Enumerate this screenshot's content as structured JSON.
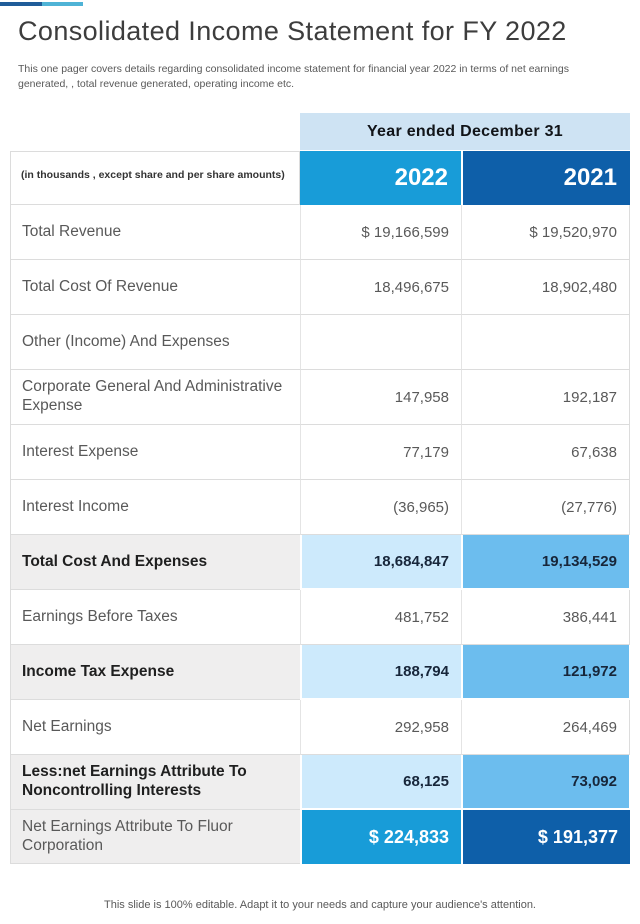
{
  "colors": {
    "accent_bright_blue": "#189CD8",
    "accent_dark_blue": "#0E5FA9",
    "band_light_blue": "#CEE3F3",
    "highlight_light_blue": "#CDEAFC",
    "highlight_medium_blue": "#6CBDEE",
    "highlight_gray": "#EFEEEE",
    "top_bar_dark": "#1F5C99",
    "top_bar_light": "#4FB3D6"
  },
  "header": {
    "title": "Consolidated Income Statement for FY 2022",
    "subtitle": "This one pager covers details regarding consolidated income statement for financial year 2022 in terms of net earnings generated, , total revenue generated, operating income etc."
  },
  "table": {
    "span_header": "Year ended December 31",
    "note": "(in thousands , except share and per share amounts)",
    "columns": [
      "2022",
      "2021"
    ],
    "rows": [
      {
        "label": "Total Revenue",
        "v2022": "$ 19,166,599",
        "v2021": "$ 19,520,970",
        "style": "normal"
      },
      {
        "label": "Total Cost Of Revenue",
        "v2022": "18,496,675",
        "v2021": "18,902,480",
        "style": "normal"
      },
      {
        "label": "Other (Income) And Expenses",
        "v2022": "",
        "v2021": "",
        "style": "normal"
      },
      {
        "label": "Corporate General And Administrative Expense",
        "v2022": "147,958",
        "v2021": "192,187",
        "style": "normal"
      },
      {
        "label": "Interest Expense",
        "v2022": "77,179",
        "v2021": "67,638",
        "style": "normal"
      },
      {
        "label": "Interest Income",
        "v2022": "(36,965)",
        "v2021": "(27,776)",
        "style": "normal"
      },
      {
        "label": "Total Cost And Expenses",
        "v2022": "18,684,847",
        "v2021": "19,134,529",
        "style": "highlight"
      },
      {
        "label": "Earnings Before Taxes",
        "v2022": "481,752",
        "v2021": "386,441",
        "style": "normal"
      },
      {
        "label": "Income Tax Expense",
        "v2022": "188,794",
        "v2021": "121,972",
        "style": "highlight"
      },
      {
        "label": "Net Earnings",
        "v2022": "292,958",
        "v2021": "264,469",
        "style": "normal"
      },
      {
        "label": "Less:net Earnings Attribute To Noncontrolling Interests",
        "v2022": "68,125",
        "v2021": "73,092",
        "style": "highlight"
      },
      {
        "label": "Net Earnings Attribute To Fluor Corporation",
        "v2022": "$ 224,833",
        "v2021": "$ 191,377",
        "style": "total"
      }
    ]
  },
  "footer": {
    "text": "This slide is 100% editable. Adapt it to your needs and capture your audience's attention."
  }
}
